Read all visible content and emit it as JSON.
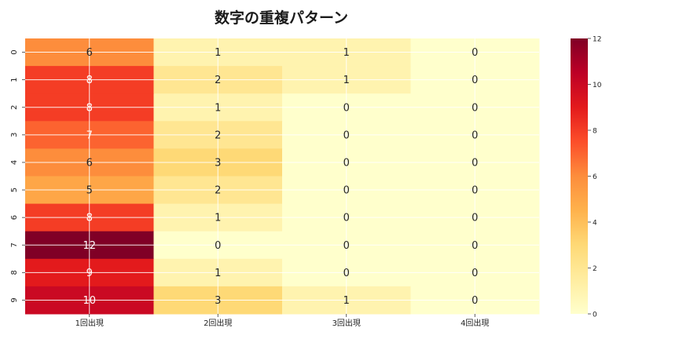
{
  "chart_data": {
    "type": "heatmap",
    "title": "数字の重複パターン",
    "columns": [
      "1回出現",
      "2回出現",
      "3回出現",
      "4回出現"
    ],
    "rows": [
      "0",
      "1",
      "2",
      "3",
      "4",
      "5",
      "6",
      "7",
      "8",
      "9"
    ],
    "values": [
      [
        6,
        1,
        1,
        0
      ],
      [
        8,
        2,
        1,
        0
      ],
      [
        8,
        1,
        0,
        0
      ],
      [
        7,
        2,
        0,
        0
      ],
      [
        6,
        3,
        0,
        0
      ],
      [
        5,
        2,
        0,
        0
      ],
      [
        8,
        1,
        0,
        0
      ],
      [
        12,
        0,
        0,
        0
      ],
      [
        9,
        1,
        0,
        0
      ],
      [
        10,
        3,
        1,
        0
      ]
    ],
    "colorbar": {
      "min": 0,
      "max": 12,
      "ticks": [
        0,
        2,
        4,
        6,
        8,
        10,
        12
      ]
    },
    "colormap": "YlOrRd",
    "grid": true,
    "annotate": true
  }
}
